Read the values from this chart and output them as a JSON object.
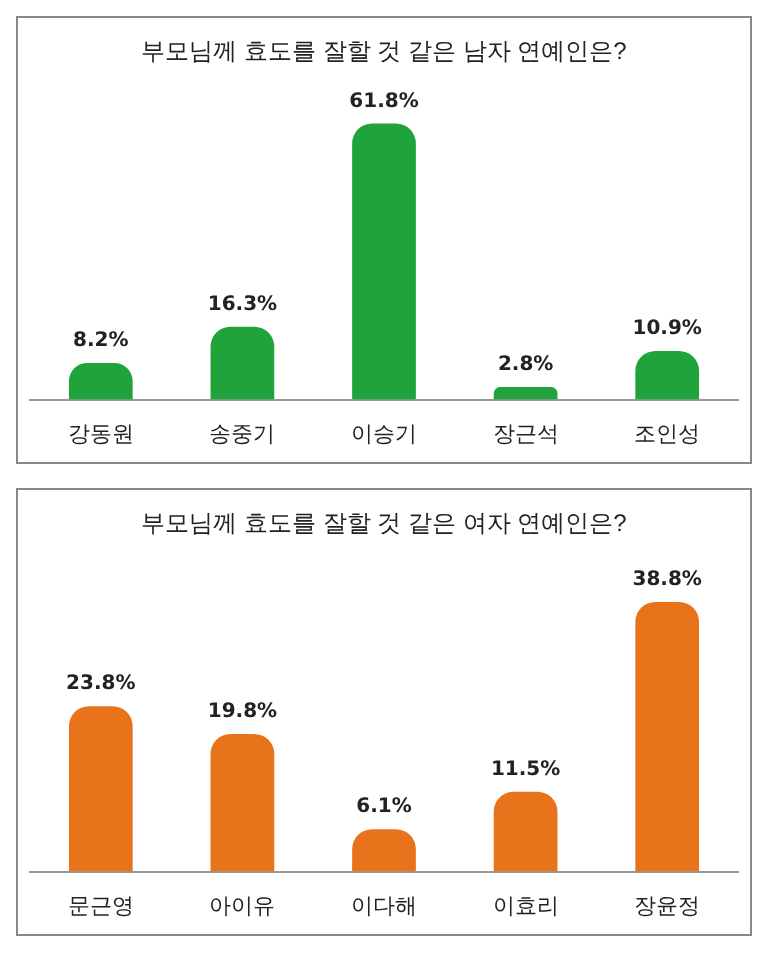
{
  "chart_data": [
    {
      "type": "bar",
      "title": "부모님께 효도를 잘할 것 같은 남자 연예인은?",
      "categories": [
        "강동원",
        "송중기",
        "이승기",
        "장근석",
        "조인성"
      ],
      "values": [
        8.2,
        16.3,
        61.8,
        2.8,
        10.9
      ],
      "color": "#1fa33a",
      "value_labels": [
        "8.2%",
        "16.3%",
        "61.8%",
        "2.8%",
        "10.9%"
      ],
      "tick_labels": "x",
      "grid": false
    },
    {
      "type": "bar",
      "title": "부모님께 효도를 잘할 것 같은 여자 연예인은?",
      "categories": [
        "문근영",
        "아이유",
        "이다해",
        "이효리",
        "장윤정"
      ],
      "values": [
        23.8,
        19.8,
        6.1,
        11.5,
        38.8
      ],
      "color": "#e8731a",
      "value_labels": [
        "23.8%",
        "19.8%",
        "6.1%",
        "11.5%",
        "38.8%"
      ],
      "tick_labels": "x",
      "grid": false
    }
  ]
}
